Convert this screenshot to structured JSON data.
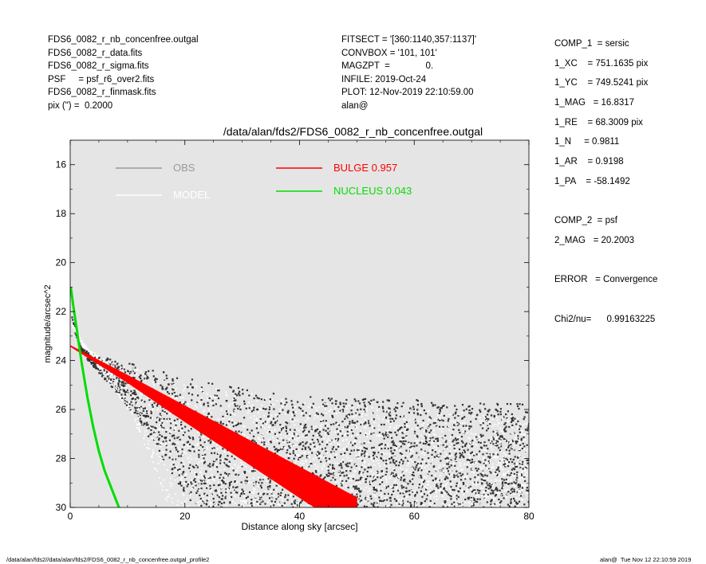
{
  "header_left": [
    "FDS6_0082_r_nb_concenfree.outgal",
    "FDS6_0082_r_data.fits",
    "FDS6_0082_r_sigma.fits",
    "PSF     = psf_r6_over2.fits",
    "FDS6_0082_r_finmask.fits",
    "pix (\") =  0.2000"
  ],
  "header_mid": [
    "FITSECT = '[360:1140,357:1137]'",
    "CONVBOX = '101, 101'",
    "MAGZPT  =              0.",
    "INFILE: 2019-Oct-24",
    "PLOT: 12-Nov-2019 22:10:59.00",
    "alan@"
  ],
  "params": [
    "COMP_1  = sersic",
    "1_XC    = 751.1635 pix",
    "1_YC    = 749.5241 pix",
    "1_MAG   = 16.8317",
    "1_RE    = 68.3009 pix",
    "1_N     = 0.9811",
    "1_AR    = 0.9198",
    "1_PA    = -58.1492",
    "",
    "COMP_2  = psf",
    "2_MAG   = 20.2003",
    "",
    "ERROR   = Convergence",
    "",
    "Chi2/nu=      0.99163225"
  ],
  "footer_left": "/data/alan/fds2//data/alan/fds2/FDS6_0082_r_nb_concenfree.outgal_profile2",
  "footer_right": "alan@  Tue Nov 12 22:10:59 2019",
  "chart_data": {
    "type": "scatter",
    "title": "/data/alan/fds2/FDS6_0082_r_nb_concenfree.outgal",
    "xlabel": "Distance along sky [arcsec]",
    "ylabel": "magnitude/arcsec^2",
    "xlim": [
      0,
      80
    ],
    "ylim": [
      30,
      15
    ],
    "y_inverted": true,
    "xticks": [
      0,
      20,
      40,
      60,
      80
    ],
    "yticks": [
      16,
      18,
      20,
      22,
      24,
      26,
      28,
      30
    ],
    "background": "#e5e5e5",
    "legend": [
      {
        "label": "OBS",
        "color": "#999999",
        "text_color": "#999999"
      },
      {
        "label": "MODEL",
        "color": "#ffffff",
        "text_color": "#ffffff"
      },
      {
        "label": "BULGE  0.957",
        "color": "#ff0000",
        "text_color": "#ff0000"
      },
      {
        "label": "NUCLEUS  0.043",
        "color": "#00dd00",
        "text_color": "#00dd00"
      }
    ],
    "series": [
      {
        "name": "OBS",
        "kind": "points",
        "color": "#333333",
        "upper_envelope": [
          [
            0.3,
            22.2
          ],
          [
            1,
            23.0
          ],
          [
            2,
            23.5
          ],
          [
            4,
            23.75
          ],
          [
            8,
            24.0
          ],
          [
            12,
            24.2
          ],
          [
            16,
            24.4
          ],
          [
            20,
            24.7
          ],
          [
            25,
            24.9
          ],
          [
            30,
            25.1
          ],
          [
            35,
            25.3
          ],
          [
            40,
            25.45
          ],
          [
            50,
            25.55
          ],
          [
            60,
            25.6
          ],
          [
            80,
            25.75
          ]
        ],
        "lower_envelope": [
          [
            0.3,
            22.2
          ],
          [
            2,
            23.7
          ],
          [
            5,
            24.5
          ],
          [
            8,
            25.3
          ],
          [
            12,
            26.5
          ],
          [
            15,
            27.6
          ],
          [
            18,
            28.7
          ],
          [
            20,
            29.5
          ],
          [
            22,
            30
          ]
        ]
      },
      {
        "name": "MODEL",
        "kind": "points",
        "color": "#ffffff",
        "upper_envelope": [
          [
            0.3,
            22.5
          ],
          [
            2,
            23.4
          ],
          [
            5,
            23.8
          ],
          [
            10,
            24.2
          ],
          [
            20,
            24.9
          ],
          [
            30,
            25.3
          ],
          [
            40,
            25.6
          ],
          [
            60,
            26.0
          ],
          [
            80,
            26.3
          ]
        ],
        "lower_envelope": [
          [
            0.3,
            22.5
          ],
          [
            5,
            24.3
          ],
          [
            10,
            26.0
          ],
          [
            14,
            28.0
          ],
          [
            17,
            30
          ]
        ]
      },
      {
        "name": "BULGE",
        "kind": "band",
        "color": "#ff0000",
        "x": [
          0,
          10,
          20,
          30,
          40,
          50
        ],
        "y_lower": [
          23.38,
          24.6,
          25.85,
          27.1,
          28.35,
          29.6
        ],
        "y_upper": [
          23.42,
          24.9,
          26.5,
          28.05,
          29.6,
          31.1
        ]
      },
      {
        "name": "NUCLEUS",
        "kind": "line",
        "color": "#00dd00",
        "x": [
          0.1,
          0.5,
          1.0,
          1.5,
          2.0,
          2.5,
          3.0,
          4.0,
          5.0,
          6.0,
          7.0,
          8.0,
          8.5
        ],
        "y": [
          21.0,
          21.7,
          22.5,
          23.3,
          24.1,
          24.8,
          25.5,
          26.7,
          27.7,
          28.5,
          29.1,
          29.7,
          30.0
        ]
      }
    ]
  }
}
